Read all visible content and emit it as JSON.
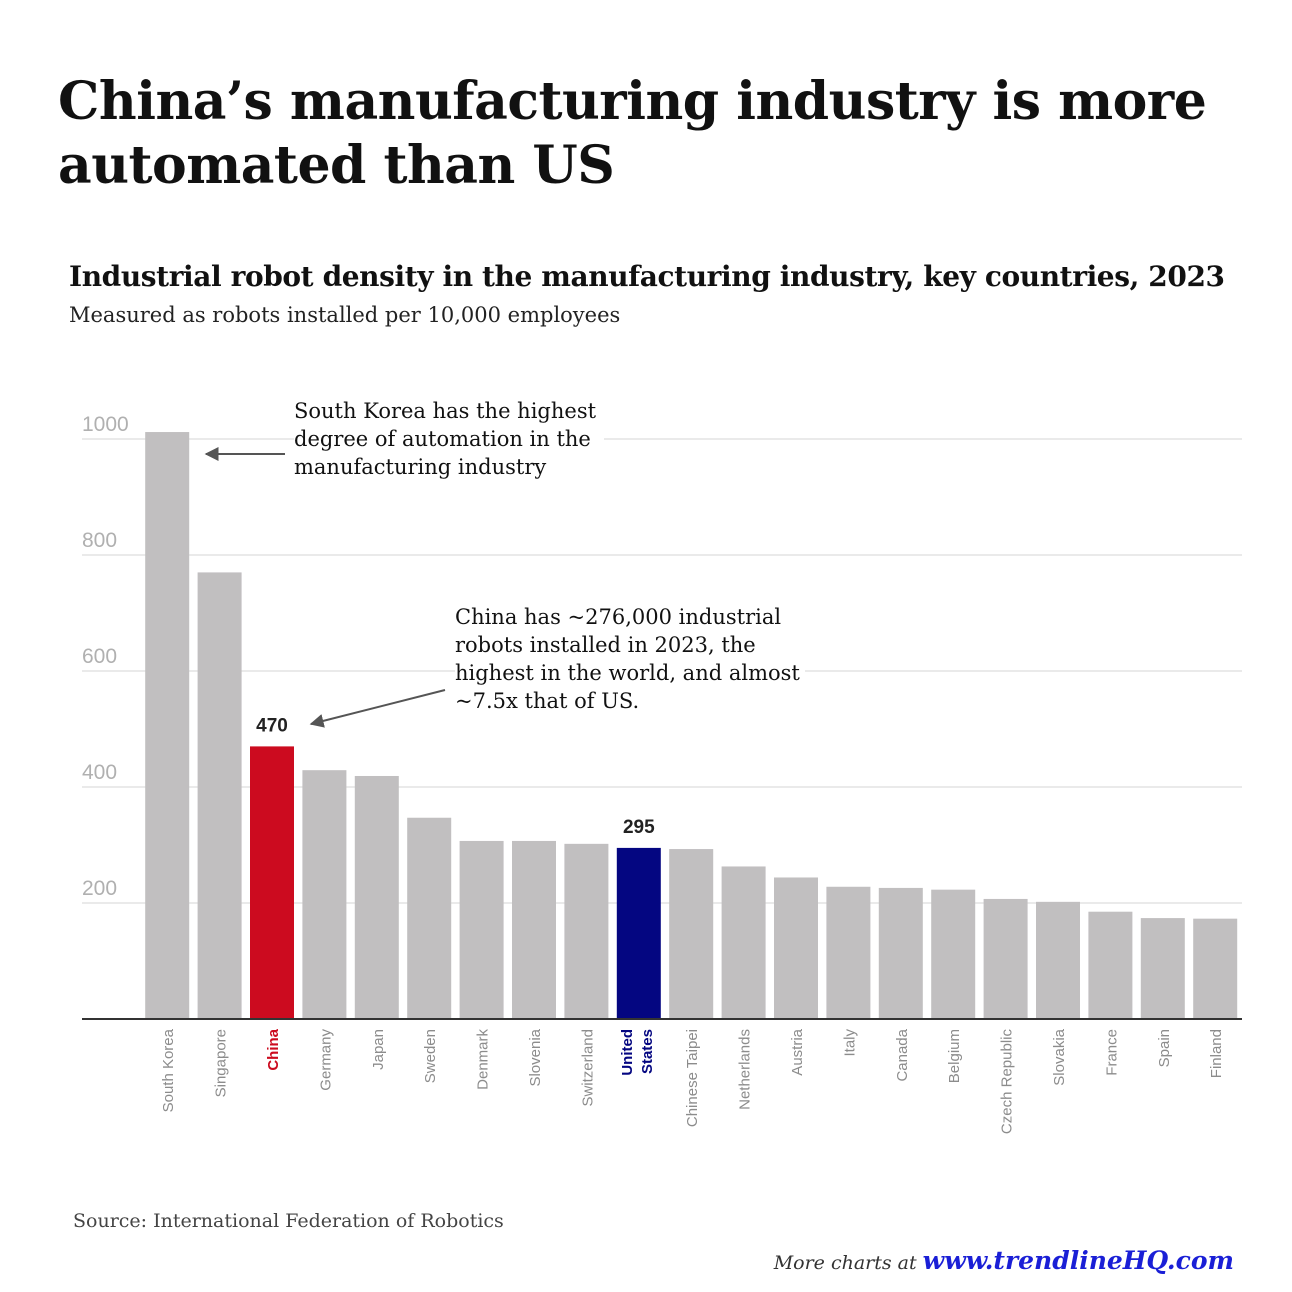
{
  "headline": "China’s manufacturing industry is more automated than US",
  "source": "Source: International Federation of Robotics",
  "footer": {
    "prefix": "More charts at",
    "link": "www.trendlineHQ.com"
  },
  "annotations": {
    "south_korea": "South Korea has the highest degree of automation in the manufacturing industry",
    "china": "China has ~276,000 industrial robots installed in 2023, the highest in the world, and almost ~7.5x that of US."
  },
  "colors": {
    "default_bar": "#c1bfc0",
    "china": "#cc0b1f",
    "united_states": "#040681",
    "axis_tick_label": "#b0b0b0",
    "category_label": "#8c8c8c",
    "gridline": "#e4e4e4"
  },
  "chart_data": {
    "type": "bar",
    "title": "Industrial robot density in the manufacturing industry, key countries, 2023",
    "subtitle": "Measured as robots installed per 10,000 employees",
    "xlabel": "",
    "ylabel": "",
    "ylim": [
      0,
      1050
    ],
    "yticks": [
      200,
      400,
      600,
      800,
      1000
    ],
    "grid": true,
    "categories": [
      "South Korea",
      "Singapore",
      "China",
      "Germany",
      "Japan",
      "Sweden",
      "Denmark",
      "Slovenia",
      "Switzerland",
      "United States",
      "Chinese Taipei",
      "Netherlands",
      "Austria",
      "Italy",
      "Canada",
      "Belgium",
      "Czech Republic",
      "Slovakia",
      "France",
      "Spain",
      "Finland"
    ],
    "values": [
      1012,
      770,
      470,
      429,
      419,
      347,
      307,
      307,
      302,
      295,
      293,
      263,
      244,
      228,
      226,
      223,
      207,
      202,
      185,
      174,
      173
    ],
    "highlight": {
      "China": "#cc0b1f",
      "United States": "#040681"
    },
    "data_labels": [
      {
        "category": "China",
        "text": "470"
      },
      {
        "category": "United States",
        "text": "295"
      }
    ]
  }
}
